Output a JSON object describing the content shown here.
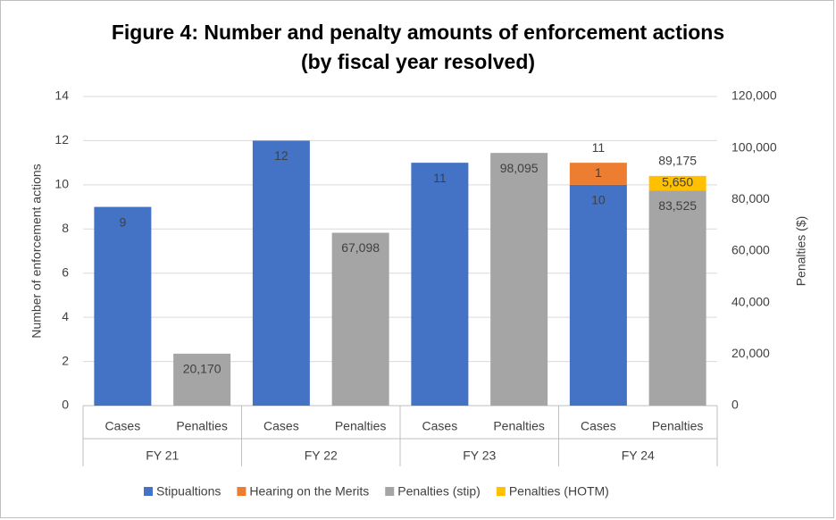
{
  "chart_data": {
    "type": "bar",
    "title": "Figure 4: Number and penalty amounts of enforcement actions",
    "subtitle": "(by fiscal year resolved)",
    "y_label": "Number of enforcement actions",
    "y2_label": "Penalties ($)",
    "y_label_color": "#4472c4",
    "y2_label_color": "#ed7d31",
    "categories": [
      "Cases",
      "Penalties",
      "Cases",
      "Penalties",
      "Cases",
      "Penalties",
      "Cases",
      "Penalties"
    ],
    "groups": [
      "FY 21",
      "FY 22",
      "FY 23",
      "FY 24"
    ],
    "stacked": true,
    "grid": true,
    "legend": "bottom",
    "ylim": [
      0,
      14
    ],
    "yticks": [
      0,
      2,
      4,
      6,
      8,
      10,
      12,
      14
    ],
    "y2lim": [
      0,
      120000
    ],
    "y2ticks": [
      0,
      {
        "value": 20000,
        "label": "20,000"
      },
      {
        "value": 40000,
        "label": "40,000"
      },
      {
        "value": 60000,
        "label": "60,000"
      },
      {
        "value": 80000,
        "label": "80,000"
      },
      {
        "value": 100000,
        "label": "100,000"
      },
      {
        "value": 120000,
        "label": "120,000"
      }
    ],
    "series": [
      {
        "name": "Stipualtions",
        "color": "#4472c4",
        "label_color": "#ffffff",
        "axis": "y",
        "values": [
          9,
          null,
          12,
          null,
          11,
          null,
          10,
          null
        ]
      },
      {
        "name": "Hearing on the Merits",
        "color": "#ed7d31",
        "label_color": "#222222",
        "axis": "y",
        "values": [
          null,
          null,
          null,
          null,
          null,
          null,
          1,
          null
        ]
      },
      {
        "name": "Penalties (stip)",
        "color": "#a5a5a5",
        "label_color": "#333333",
        "axis": "y2",
        "values": [
          null,
          20170,
          null,
          67098,
          null,
          98095,
          null,
          83525
        ],
        "value_labels": [
          null,
          "20,170",
          null,
          "67,098",
          null,
          "98,095",
          null,
          "83,525"
        ]
      },
      {
        "name": "Penalties (HOTM)",
        "color": "#ffc000",
        "label_color": "#222222",
        "axis": "y2",
        "values": [
          null,
          null,
          null,
          null,
          null,
          null,
          null,
          5650
        ],
        "value_labels": [
          null,
          null,
          null,
          null,
          null,
          null,
          null,
          "5,650"
        ]
      }
    ],
    "totals": [
      null,
      null,
      null,
      null,
      null,
      null,
      11,
      89175
    ],
    "total_labels": [
      null,
      null,
      null,
      null,
      null,
      null,
      null,
      "89,175"
    ],
    "total_colors": [
      null,
      null,
      null,
      null,
      null,
      null,
      "#4472c4",
      "#c55a11"
    ]
  }
}
